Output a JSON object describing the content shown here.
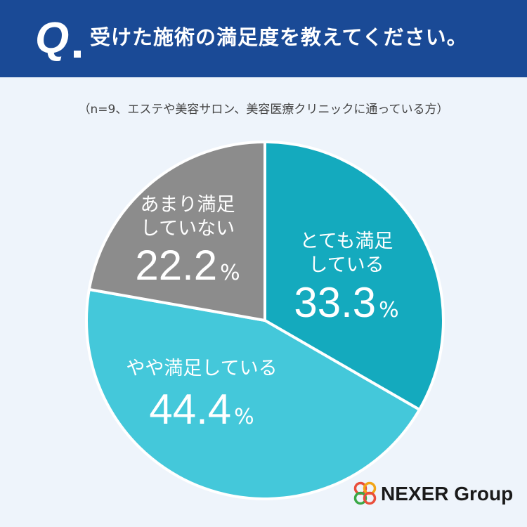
{
  "header": {
    "q_mark": "Q",
    "title": "受けた施術の満足度を教えてください。"
  },
  "subtitle": "（n=9、エステや美容サロン、美容医療クリニックに通っている方）",
  "brand": {
    "name": "NEXER Group"
  },
  "colors": {
    "header_bg": "#1a4a96",
    "slice_very": "#14aabe",
    "slice_somewhat": "#44c8da",
    "slice_not": "#8c8c8c"
  },
  "chart_data": {
    "type": "pie",
    "title": "",
    "slices": [
      {
        "label_lines": [
          "とても満足",
          "している"
        ],
        "value": 33.3,
        "value_text": "33.3",
        "unit": "%",
        "color": "#14aabe"
      },
      {
        "label_lines": [
          "やや満足している"
        ],
        "value": 44.4,
        "value_text": "44.4",
        "unit": "%",
        "color": "#44c8da"
      },
      {
        "label_lines": [
          "あまり満足",
          "していない"
        ],
        "value": 22.2,
        "value_text": "22.2",
        "unit": "%",
        "color": "#8c8c8c"
      }
    ]
  }
}
